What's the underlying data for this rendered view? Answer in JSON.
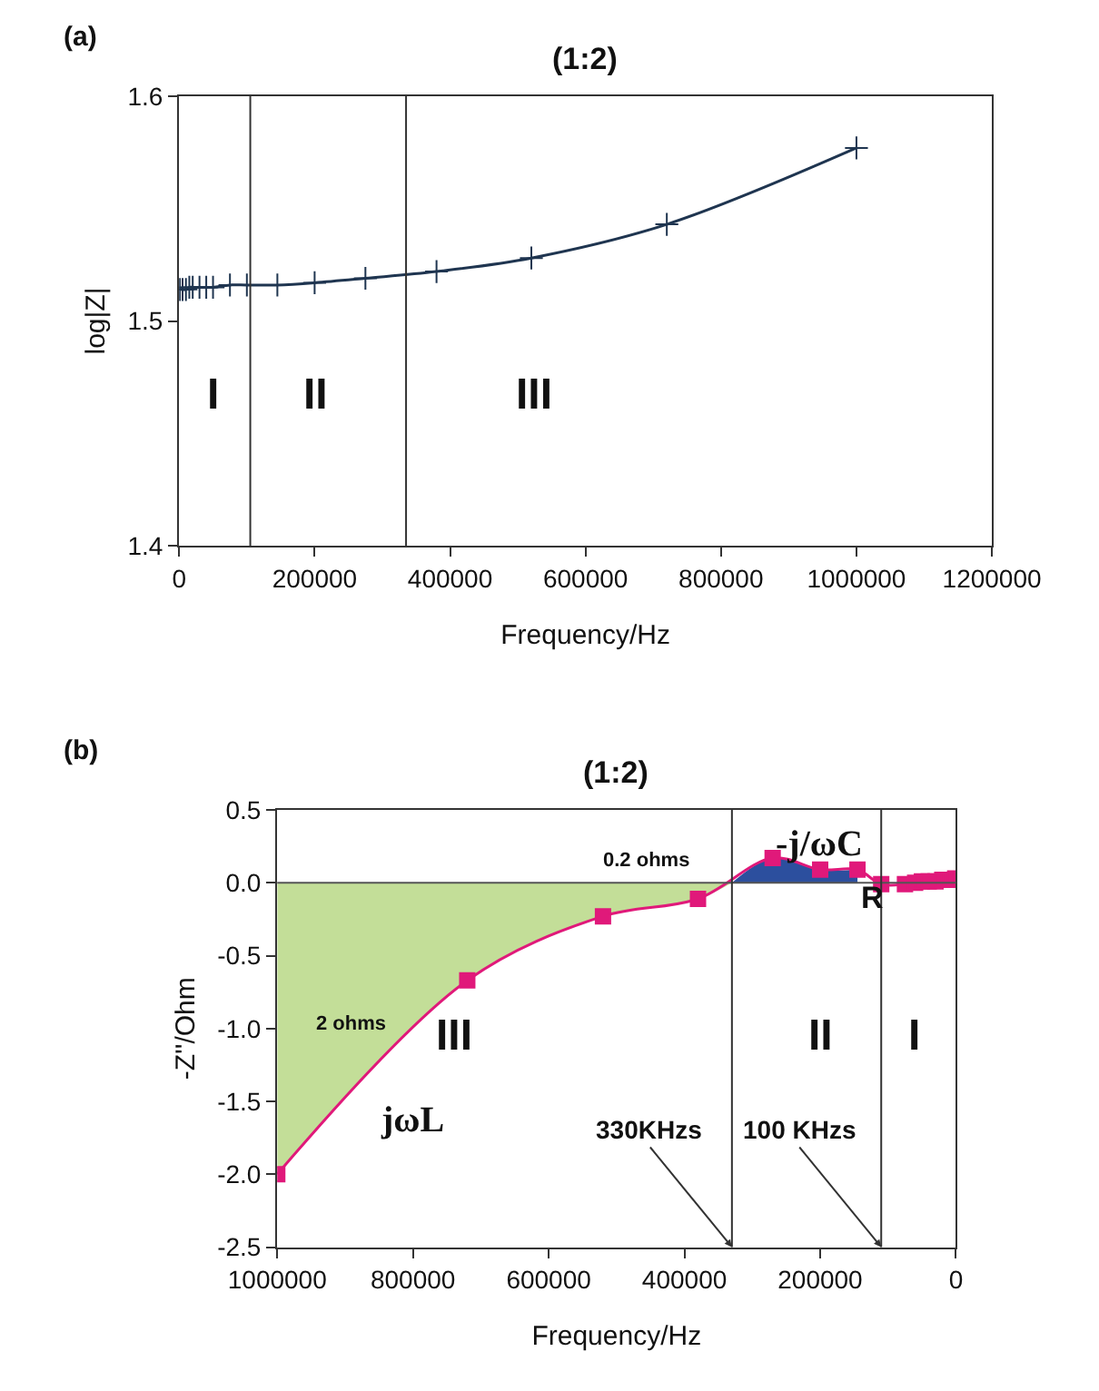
{
  "chart_data": [
    {
      "type": "line",
      "title": "(1:2)",
      "xlabel": "Frequency/Hz",
      "ylabel": "log|Z|",
      "xlim": [
        0,
        1200000
      ],
      "xticks": [
        0,
        200000,
        400000,
        600000,
        800000,
        1000000,
        1200000
      ],
      "ylim": [
        1.4,
        1.6
      ],
      "yticks": [
        1.4,
        1.5,
        1.6
      ],
      "marker": "cross",
      "line_style": "solid",
      "series": [
        {
          "color": "#1f3550",
          "x": [
            1000,
            5000,
            10000,
            15000,
            20000,
            30000,
            40000,
            50000,
            75000,
            100000,
            145000,
            200000,
            275000,
            380000,
            520000,
            720000,
            1000000
          ],
          "values": [
            1.514,
            1.514,
            1.514,
            1.515,
            1.515,
            1.515,
            1.515,
            1.515,
            1.516,
            1.516,
            1.516,
            1.517,
            1.519,
            1.522,
            1.528,
            1.543,
            1.577
          ]
        }
      ],
      "ref_lines": [
        {
          "axis": "x",
          "value": 105000,
          "color": "#333333"
        },
        {
          "axis": "x",
          "value": 335000,
          "color": "#333333"
        }
      ],
      "annotations": [
        "(a)",
        "I",
        "II",
        "III"
      ]
    },
    {
      "type": "line",
      "title": "(1:2)",
      "xlabel": "Frequency/Hz",
      "ylabel": "-Z''/Ohm",
      "xlim": [
        1000000,
        0
      ],
      "xticks": [
        1000000,
        800000,
        600000,
        400000,
        200000,
        0
      ],
      "ylim": [
        -2.5,
        0.5
      ],
      "yticks": [
        {
          "value": -2.5,
          "label": "-2.5"
        },
        {
          "value": -2,
          "label": "-2.0"
        },
        {
          "value": -1.5,
          "label": "-1.5"
        },
        {
          "value": -1,
          "label": "-1.0"
        },
        {
          "value": -0.5,
          "label": "-0.5"
        },
        {
          "value": 0,
          "label": "0.0"
        },
        {
          "value": 0.5,
          "label": "0.5"
        }
      ],
      "series": [
        {
          "type": "area",
          "color": "#c3de98",
          "x": [
            1000000,
            720000,
            520000,
            380000,
            330000
          ],
          "values": [
            -2.0,
            -0.67,
            -0.23,
            -0.11,
            0.0
          ]
        },
        {
          "type": "area",
          "color": "#2c4f9e",
          "x": [
            330000,
            270000,
            200000,
            145000
          ],
          "values": [
            0.0,
            0.17,
            0.09,
            0.09
          ]
        },
        {
          "type": "line",
          "color": "#e0197a",
          "marker": "square",
          "x": [
            1000000,
            720000,
            520000,
            380000,
            270000,
            200000,
            145000,
            110000,
            75000,
            60000,
            50000,
            40000,
            30000,
            20000,
            10000,
            5000,
            1000
          ],
          "values": [
            -2.0,
            -0.67,
            -0.23,
            -0.11,
            0.17,
            0.09,
            0.09,
            -0.01,
            -0.01,
            0.0,
            0.01,
            0.01,
            0.01,
            0.02,
            0.02,
            0.02,
            0.03
          ]
        }
      ],
      "ref_lines": [
        {
          "axis": "y",
          "value": 0,
          "color": "#555555"
        },
        {
          "axis": "x",
          "value": 330000,
          "label": "330KHzs",
          "color": "#333333"
        },
        {
          "axis": "x",
          "value": 110000,
          "label": "100 KHzs",
          "color": "#333333"
        }
      ],
      "annotations": [
        "(b)",
        "-j/ωC",
        "R",
        "jωL",
        "2 ohms",
        "0.2 ohms",
        "III",
        "II",
        "I"
      ]
    }
  ]
}
